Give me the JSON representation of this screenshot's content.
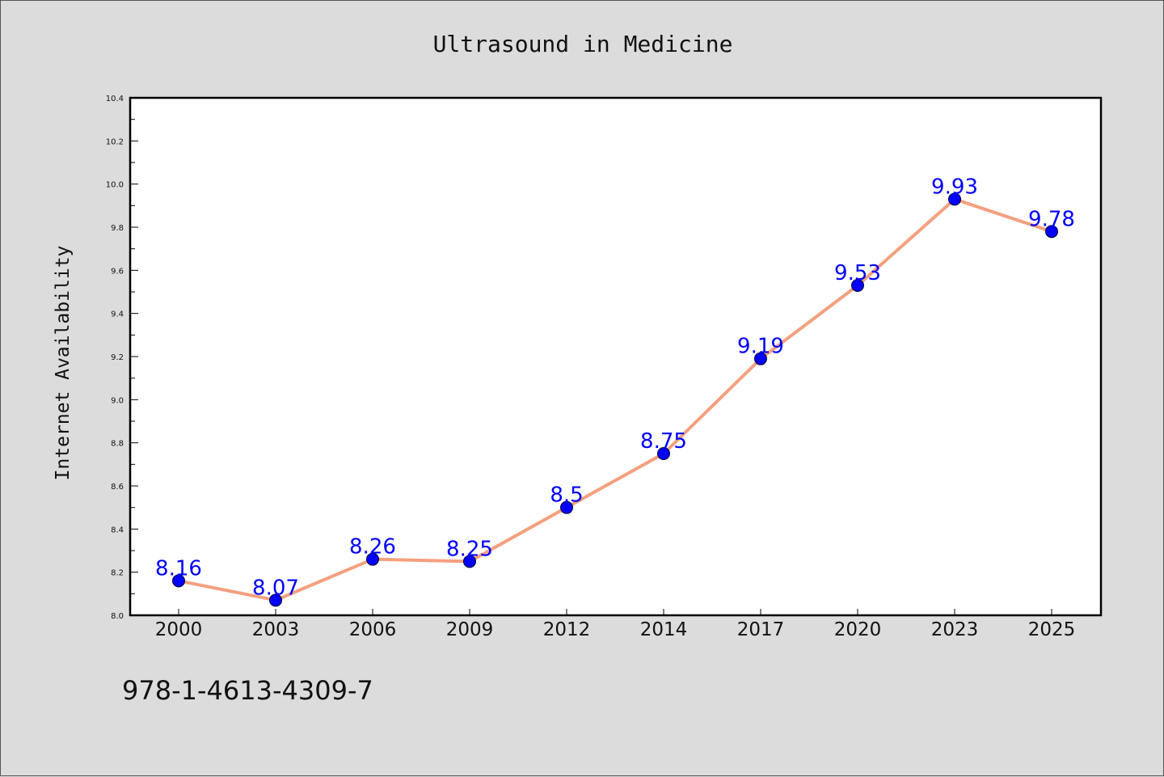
{
  "chart_data": {
    "type": "line",
    "title": "Ultrasound in Medicine",
    "xlabel": "",
    "ylabel": "Internet Availability",
    "categories": [
      "2000",
      "2003",
      "2006",
      "2009",
      "2012",
      "2014",
      "2017",
      "2020",
      "2023",
      "2025"
    ],
    "series": [
      {
        "values": [
          8.16,
          8.07,
          8.26,
          8.25,
          8.5,
          8.75,
          9.19,
          9.53,
          9.93,
          9.78
        ],
        "data_labels": [
          "8.16",
          "8.07",
          "8.26",
          "8.25",
          "8.5",
          "8.75",
          "9.19",
          "9.53",
          "9.93",
          "9.78"
        ],
        "line_color": "#f4a07f",
        "marker_color": "#0000ff"
      }
    ],
    "ylim": [
      8.0,
      10.4
    ],
    "yticks": [
      "8.0",
      "8.2",
      "8.4",
      "8.6",
      "8.8",
      "9.0",
      "9.2",
      "9.4",
      "9.6",
      "9.8",
      "10.0",
      "10.2",
      "10.4"
    ],
    "grid": false,
    "legend": "none"
  },
  "footer": {
    "isbn": "978-1-4613-4309-7"
  },
  "colors": {
    "background": "#dcdcdc",
    "plot_background": "#ffffff",
    "label_color": "#0000ff"
  }
}
